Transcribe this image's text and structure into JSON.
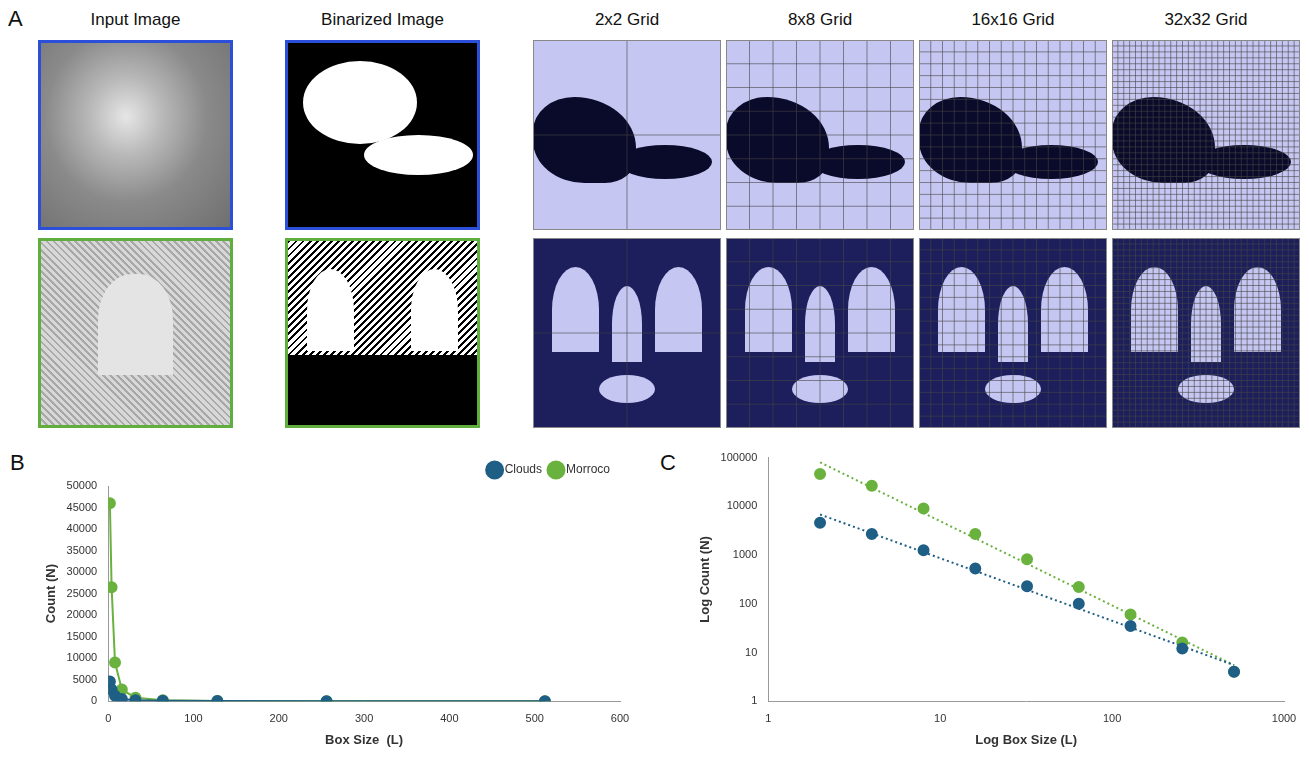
{
  "panel_a": {
    "letter": "A",
    "row_colors": [
      "#2b4fd8",
      "#5fae3e"
    ],
    "columns": [
      {
        "title": "Input Image"
      },
      {
        "title": "Binarized Image"
      },
      {
        "title": "2x2 Grid",
        "divisions": 2
      },
      {
        "title": "8x8 Grid",
        "divisions": 8
      },
      {
        "title": "16x16 Grid",
        "divisions": 16
      },
      {
        "title": "32x32 Grid",
        "divisions": 32
      }
    ]
  },
  "chart_data": [
    {
      "panel_label": "B",
      "type": "line",
      "x_label": "Box Size  (L)",
      "y_label": "Count (N)",
      "x": [
        2,
        4,
        8,
        16,
        32,
        64,
        128,
        256,
        512
      ],
      "series": [
        {
          "name": "Clouds",
          "color": "#1f5f86",
          "marker": "circle",
          "values": [
            4600,
            2700,
            1250,
            530,
            230,
            100,
            35,
            12,
            4
          ]
        },
        {
          "name": "Morroco",
          "color": "#6ab23e",
          "marker": "circle",
          "values": [
            46000,
            26500,
            9000,
            2700,
            820,
            220,
            60,
            16,
            4
          ]
        }
      ],
      "xlim": [
        0,
        600
      ],
      "xticks": [
        0,
        100,
        200,
        300,
        400,
        500,
        600
      ],
      "ylim": [
        0,
        50000
      ],
      "yticks": [
        0,
        5000,
        10000,
        15000,
        20000,
        25000,
        30000,
        35000,
        40000,
        45000,
        50000
      ],
      "grid": false,
      "legend": "upper right"
    },
    {
      "panel_label": "C",
      "type": "scatter",
      "log": true,
      "x_label": "Log Box Size (L)",
      "y_label": "Log Count (N)",
      "x": [
        2,
        4,
        8,
        16,
        32,
        64,
        128,
        256,
        512
      ],
      "series": [
        {
          "name": "Clouds",
          "color": "#1f5f86",
          "marker": "circle",
          "values": [
            4600,
            2700,
            1250,
            530,
            230,
            100,
            35,
            12,
            4
          ],
          "trend": {
            "x": [
              2,
              512
            ],
            "values": [
              6800,
              5.5
            ],
            "line_style": "dotted"
          }
        },
        {
          "name": "Morroco",
          "color": "#6ab23e",
          "marker": "circle",
          "values": [
            46000,
            26500,
            9000,
            2700,
            820,
            220,
            60,
            16,
            4
          ],
          "trend": {
            "x": [
              2,
              512
            ],
            "values": [
              80000,
              5.5
            ],
            "line_style": "dotted"
          }
        }
      ],
      "xlim": [
        1,
        1000
      ],
      "xticks": [
        1,
        10,
        100,
        1000
      ],
      "ylim": [
        1,
        100000
      ],
      "yticks": [
        1,
        10,
        100,
        1000,
        10000,
        100000
      ],
      "grid": false
    }
  ]
}
